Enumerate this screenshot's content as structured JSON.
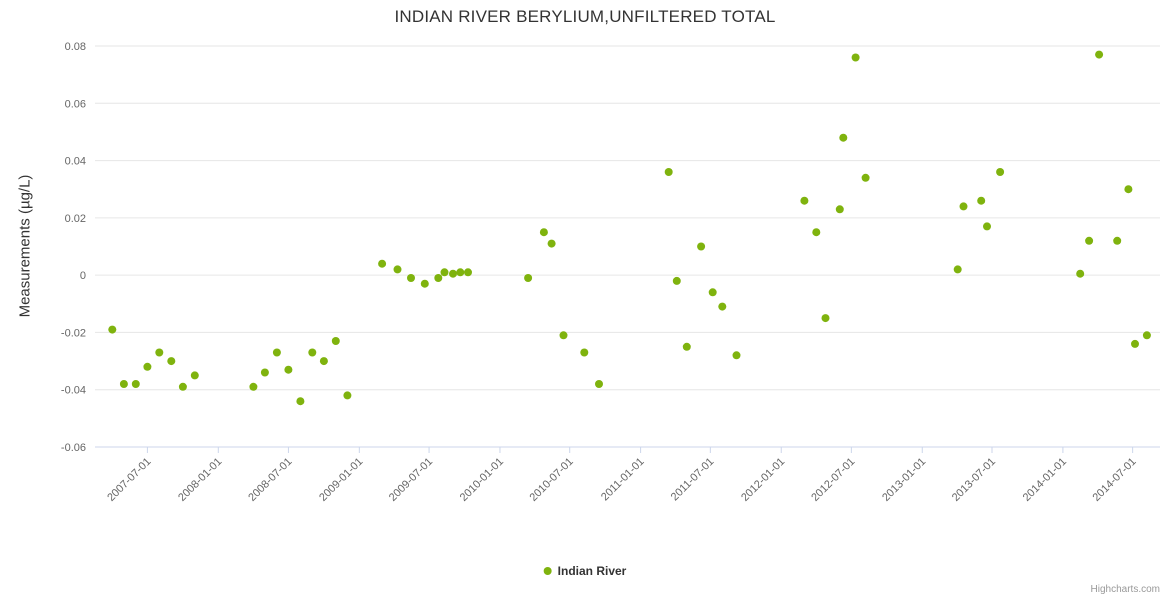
{
  "title": "INDIAN RIVER BERYLIUM,UNFILTERED TOTAL",
  "y_axis": {
    "title": "Measurements (µg/L)"
  },
  "legend": {
    "label": "Indian River"
  },
  "credit": "Highcharts.com",
  "colors": {
    "marker": "#7fb30e",
    "grid": "#e6e6e6",
    "axis_label": "#666666",
    "axis_line": "#ccd6eb"
  },
  "chart_data": {
    "type": "scatter",
    "title": "INDIAN RIVER BERYLIUM,UNFILTERED TOTAL",
    "xlabel": "",
    "ylabel": "Measurements (µg/L)",
    "grid": true,
    "legend_position": "bottom",
    "x_range": [
      "2007-02-15",
      "2014-09-10"
    ],
    "y_range": [
      -0.06,
      0.08
    ],
    "y_ticks": [
      0.08,
      0.06,
      0.04,
      0.02,
      0,
      -0.02,
      -0.04,
      -0.06
    ],
    "x_ticks": [
      "2007-07-01",
      "2008-01-01",
      "2008-07-01",
      "2009-01-01",
      "2009-07-01",
      "2010-01-01",
      "2010-07-01",
      "2011-01-01",
      "2011-07-01",
      "2012-01-01",
      "2012-07-01",
      "2013-01-01",
      "2013-07-01",
      "2014-01-01",
      "2014-07-01"
    ],
    "series": [
      {
        "name": "Indian River",
        "points": [
          [
            "2007-04-01",
            -0.019
          ],
          [
            "2007-05-01",
            -0.038
          ],
          [
            "2007-06-01",
            -0.038
          ],
          [
            "2007-07-01",
            -0.032
          ],
          [
            "2007-08-01",
            -0.027
          ],
          [
            "2007-09-01",
            -0.03
          ],
          [
            "2007-10-01",
            -0.039
          ],
          [
            "2007-11-01",
            -0.035
          ],
          [
            "2008-04-01",
            -0.039
          ],
          [
            "2008-05-01",
            -0.034
          ],
          [
            "2008-06-01",
            -0.027
          ],
          [
            "2008-07-01",
            -0.033
          ],
          [
            "2008-08-01",
            -0.044
          ],
          [
            "2008-09-01",
            -0.027
          ],
          [
            "2008-10-01",
            -0.03
          ],
          [
            "2008-11-01",
            -0.023
          ],
          [
            "2008-12-01",
            -0.042
          ],
          [
            "2009-03-01",
            0.004
          ],
          [
            "2009-04-10",
            0.002
          ],
          [
            "2009-05-15",
            -0.001
          ],
          [
            "2009-06-20",
            -0.003
          ],
          [
            "2009-07-25",
            -0.001
          ],
          [
            "2009-08-10",
            0.001
          ],
          [
            "2009-09-01",
            0.0005
          ],
          [
            "2009-09-20",
            0.001
          ],
          [
            "2009-10-10",
            0.001
          ],
          [
            "2010-03-15",
            -0.001
          ],
          [
            "2010-04-25",
            0.015
          ],
          [
            "2010-05-15",
            0.011
          ],
          [
            "2010-06-15",
            -0.021
          ],
          [
            "2010-08-08",
            -0.027
          ],
          [
            "2010-09-15",
            -0.038
          ],
          [
            "2011-03-15",
            0.036
          ],
          [
            "2011-04-05",
            -0.002
          ],
          [
            "2011-05-01",
            -0.025
          ],
          [
            "2011-06-07",
            0.01
          ],
          [
            "2011-07-07",
            -0.006
          ],
          [
            "2011-08-01",
            -0.011
          ],
          [
            "2011-09-07",
            -0.028
          ],
          [
            "2012-03-01",
            0.026
          ],
          [
            "2012-04-01",
            0.015
          ],
          [
            "2012-04-25",
            -0.015
          ],
          [
            "2012-06-01",
            0.023
          ],
          [
            "2012-06-10",
            0.048
          ],
          [
            "2012-07-12",
            0.076
          ],
          [
            "2012-08-07",
            0.034
          ],
          [
            "2013-04-03",
            0.002
          ],
          [
            "2013-04-18",
            0.024
          ],
          [
            "2013-06-03",
            0.026
          ],
          [
            "2013-06-18",
            0.017
          ],
          [
            "2013-07-22",
            0.036
          ],
          [
            "2014-02-15",
            0.0005
          ],
          [
            "2014-03-10",
            0.012
          ],
          [
            "2014-04-05",
            0.077
          ],
          [
            "2014-05-22",
            0.012
          ],
          [
            "2014-06-20",
            0.03
          ],
          [
            "2014-07-07",
            -0.024
          ],
          [
            "2014-08-07",
            -0.021
          ]
        ]
      }
    ]
  }
}
